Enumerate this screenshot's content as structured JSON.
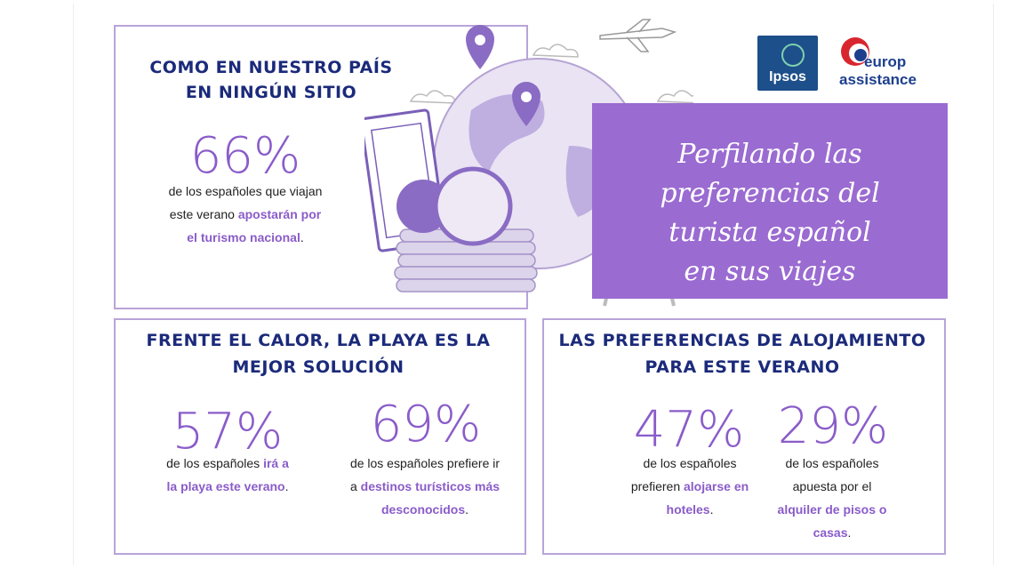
{
  "logos": {
    "ipsos": "Ipsos",
    "europ_line1": "europ",
    "europ_line2": "assistance"
  },
  "banner": {
    "line1": "Perfilando las",
    "line2": "preferencias del",
    "line3": "turista español",
    "line4": "en sus viajes"
  },
  "section1": {
    "heading_line1": "COMO EN NUESTRO PAÍS",
    "heading_line2": "EN NINGÚN SITIO",
    "stat": "66%",
    "text_line1": "de los españoles que viajan",
    "text_line2_plain": "este verano ",
    "text_line2_accent": "apostarán por",
    "text_line3_accent": "el turismo nacional",
    "text_line3_plain": "."
  },
  "section2": {
    "heading_line1": "FRENTE EL CALOR, LA PLAYA ES LA",
    "heading_line2": "MEJOR SOLUCIÓN",
    "stat_a": "57%",
    "a_line1_plain": "de los españoles ",
    "a_line1_accent": "irá a",
    "a_line2_accent": "la playa este verano",
    "a_line2_plain": ".",
    "stat_b": "69%",
    "b_line1": "de los españoles prefiere ir",
    "b_line2_plain": "a ",
    "b_line2_accent": "destinos turísticos más",
    "b_line3_accent": "desconocidos",
    "b_line3_plain": "."
  },
  "section3": {
    "heading_line1": "LAS PREFERENCIAS DE ALOJAMIENTO",
    "heading_line2": "PARA ESTE VERANO",
    "stat_a": "47%",
    "a_line1": "de los españoles",
    "a_line2_plain": "prefieren ",
    "a_line2_accent": "alojarse en",
    "a_line3_accent": "hoteles",
    "a_line3_plain": ".",
    "stat_b": "29%",
    "b_line1": "de los españoles",
    "b_line2": "apuesta por el",
    "b_line3_accent": "alquiler de pisos o",
    "b_line4_accent": "casas",
    "b_line4_plain": "."
  },
  "colors": {
    "accent": "#8a5cc9",
    "heading": "#1b2a7a",
    "border": "#b9a3d9",
    "banner": "#9a6bd1"
  },
  "icons": [
    "airplane-icon",
    "cloud-icon",
    "globe-icon",
    "map-pin-icon",
    "coin-stack-icon",
    "banknote-icon",
    "flipchart-icon"
  ]
}
